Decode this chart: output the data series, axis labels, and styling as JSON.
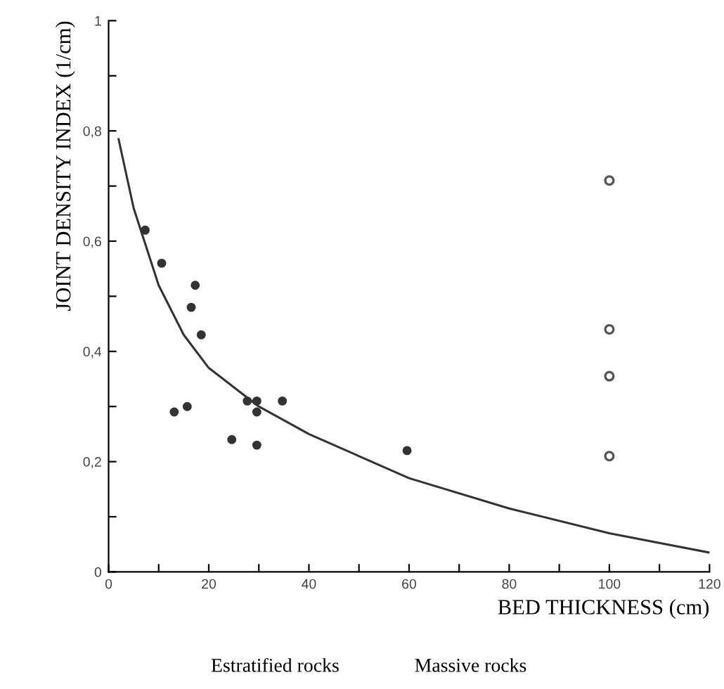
{
  "chart_data": {
    "type": "scatter",
    "xlabel": "BED THICKNESS (cm)",
    "ylabel": "JOINT DENSITY INDEX (1/cm)",
    "xlim": [
      0,
      120
    ],
    "ylim": [
      0,
      1
    ],
    "xticks": [
      0,
      {
        "value": 10,
        "label": null
      },
      20,
      {
        "value": 30,
        "label": null
      },
      40,
      {
        "value": 50,
        "label": null
      },
      60,
      {
        "value": 70,
        "label": null
      },
      80,
      {
        "value": 90,
        "label": null
      },
      100,
      {
        "value": 110,
        "label": null
      },
      120
    ],
    "yticks": [
      0,
      {
        "value": 0.1,
        "label": null
      },
      {
        "value": 0.2,
        "label": "0,2"
      },
      {
        "value": 0.3,
        "label": null
      },
      {
        "value": 0.4,
        "label": "0,4"
      },
      {
        "value": 0.5,
        "label": null
      },
      {
        "value": 0.6,
        "label": "0,6"
      },
      {
        "value": 0.7,
        "label": null
      },
      {
        "value": 0.8,
        "label": "0,8"
      },
      {
        "value": 0.9,
        "label": null
      },
      1
    ],
    "grid": false,
    "legend": false,
    "series": [
      {
        "marker": "circle",
        "color": "#333333",
        "x": [
          7.3,
          10.6,
          17.3,
          16.5,
          18.5,
          13.1,
          15.7,
          27.7,
          29.6,
          29.6,
          34.7,
          24.6,
          29.6,
          59.6
        ],
        "values": [
          0.62,
          0.56,
          0.52,
          0.48,
          0.43,
          0.29,
          0.3,
          0.31,
          0.31,
          0.29,
          0.31,
          0.24,
          0.23,
          0.22
        ]
      },
      {
        "marker": "circle",
        "color": "#555555",
        "x": [
          100,
          100,
          100,
          100
        ],
        "values": [
          0.71,
          0.44,
          0.355,
          0.21
        ]
      },
      {
        "type": "line",
        "marker": "none",
        "line_style": "solid",
        "color": "#333333",
        "x": [
          2,
          5,
          10,
          15,
          20,
          30,
          40,
          60,
          80,
          100,
          120
        ],
        "values": [
          0.785,
          0.66,
          0.52,
          0.43,
          0.37,
          0.3,
          0.25,
          0.17,
          0.115,
          0.07,
          0.035
        ]
      }
    ],
    "annotations": [
      "Estratified rocks",
      "Massive rocks"
    ]
  }
}
